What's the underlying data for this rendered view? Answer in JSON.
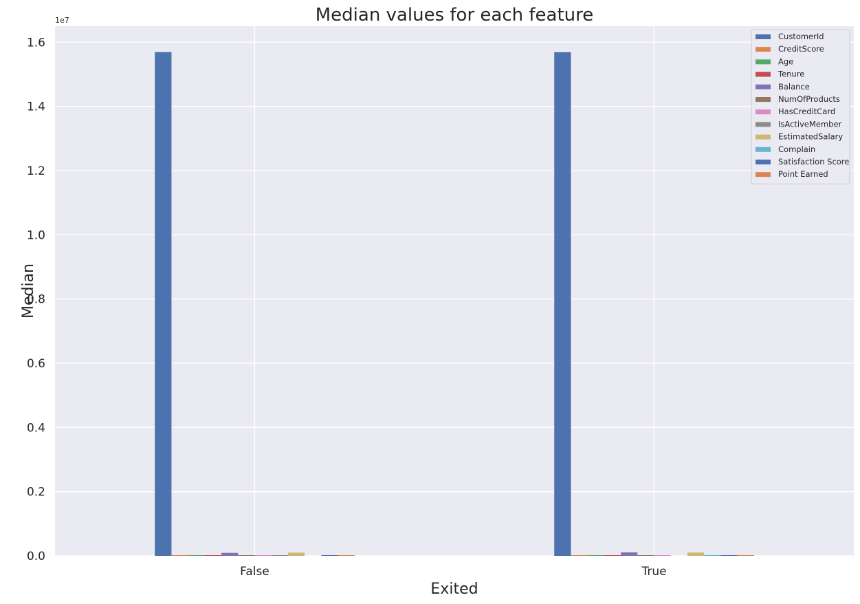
{
  "chart_data": {
    "type": "bar",
    "title": "Median values for each feature",
    "xlabel": "Exited",
    "ylabel": "Median",
    "y_offset_label": "1e7",
    "ylim": [
      0,
      16500000
    ],
    "yticks": [
      0,
      2000000,
      4000000,
      6000000,
      8000000,
      10000000,
      12000000,
      14000000,
      16000000
    ],
    "ytick_labels": [
      "0.0",
      "0.2",
      "0.4",
      "0.6",
      "0.8",
      "1.0",
      "1.2",
      "1.4",
      "1.6"
    ],
    "categories": [
      "False",
      "True"
    ],
    "grid": true,
    "legend_position": "top-right",
    "series": [
      {
        "name": "CustomerId",
        "color": "#4c72b0",
        "values": [
          15691000,
          15688000
        ]
      },
      {
        "name": "CreditScore",
        "color": "#dd8452",
        "values": [
          653,
          646
        ]
      },
      {
        "name": "Age",
        "color": "#55a868",
        "values": [
          36,
          45
        ]
      },
      {
        "name": "Tenure",
        "color": "#c44e52",
        "values": [
          5,
          5
        ]
      },
      {
        "name": "Balance",
        "color": "#8172b3",
        "values": [
          92000,
          109000
        ]
      },
      {
        "name": "NumOfProducts",
        "color": "#937860",
        "values": [
          2,
          1
        ]
      },
      {
        "name": "HasCreditCard",
        "color": "#da8bc3",
        "values": [
          1,
          1
        ]
      },
      {
        "name": "IsActiveMember",
        "color": "#8c8c8c",
        "values": [
          1,
          0
        ]
      },
      {
        "name": "EstimatedSalary",
        "color": "#ccb974",
        "values": [
          99600,
          102500
        ]
      },
      {
        "name": "Complain",
        "color": "#64b5cd",
        "values": [
          0,
          1
        ]
      },
      {
        "name": "Satisfaction Score",
        "color": "#4c72b0",
        "values": [
          3,
          3
        ]
      },
      {
        "name": "Point Earned",
        "color": "#dd8452",
        "values": [
          603,
          610
        ]
      }
    ]
  }
}
